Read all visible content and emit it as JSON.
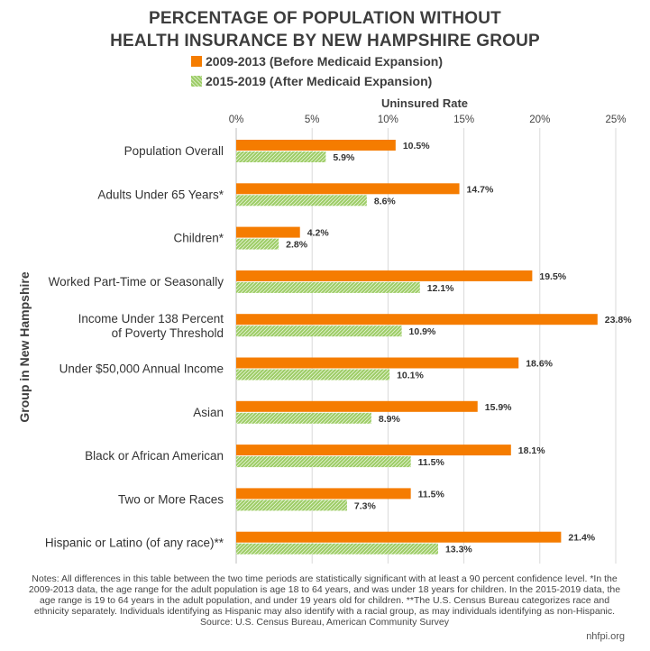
{
  "title_line1": "PERCENTAGE OF POPULATION WITHOUT",
  "title_line2": "HEALTH INSURANCE BY NEW HAMPSHIRE GROUP",
  "notes": "Notes: All differences in this table between the two time periods are statistically significant with at least a 90 percent confidence level. *In the 2009-2013 data, the age range for the adult population is age 18 to 64 years, and was under 18 years for children. In the 2015-2019 data, the age range is 19 to 64 years in the adult population, and under 19 years old for children. **The U.S. Census Bureau categorizes race and ethnicity separately. Individuals identifying as Hispanic may also identify with a racial group, as may individuals identifying as non-Hispanic.",
  "source": "Source: U.S. Census Bureau, American Community Survey",
  "credit": "nhfpi.org",
  "chart_data": {
    "type": "bar",
    "orientation": "horizontal",
    "xlabel": "Uninsured Rate",
    "ylabel": "Group in New Hampshire",
    "xlim": [
      0,
      25
    ],
    "xticks": [
      "0%",
      "5%",
      "10%",
      "15%",
      "20%",
      "25%"
    ],
    "grid": true,
    "legend_position": "top",
    "categories": [
      [
        "Population Overall"
      ],
      [
        "Adults Under 65 Years*"
      ],
      [
        "Children*"
      ],
      [
        "Worked Part-Time or Seasonally"
      ],
      [
        "Income Under 138 Percent",
        "of Poverty Threshold"
      ],
      [
        "Under $50,000 Annual Income"
      ],
      [
        "Asian"
      ],
      [
        "Black or African American"
      ],
      [
        "Two or More Races"
      ],
      [
        "Hispanic or Latino (of any race)**"
      ]
    ],
    "series": [
      {
        "name": "2009-2013 (Before Medicaid Expansion)",
        "color": "#f57c00",
        "values": [
          10.5,
          14.7,
          4.2,
          19.5,
          23.8,
          18.6,
          15.9,
          18.1,
          11.5,
          21.4
        ],
        "labels": [
          "10.5%",
          "14.7%",
          "4.2%",
          "19.5%",
          "23.8%",
          "18.6%",
          "15.9%",
          "18.1%",
          "11.5%",
          "21.4%"
        ]
      },
      {
        "name": "2015-2019 (After Medicaid Expansion)",
        "color": "#8bc34a",
        "values": [
          5.9,
          8.6,
          2.8,
          12.1,
          10.9,
          10.1,
          8.9,
          11.5,
          7.3,
          13.3
        ],
        "labels": [
          "5.9%",
          "8.6%",
          "2.8%",
          "12.1%",
          "10.9%",
          "10.1%",
          "8.9%",
          "11.5%",
          "7.3%",
          "13.3%"
        ]
      }
    ]
  }
}
